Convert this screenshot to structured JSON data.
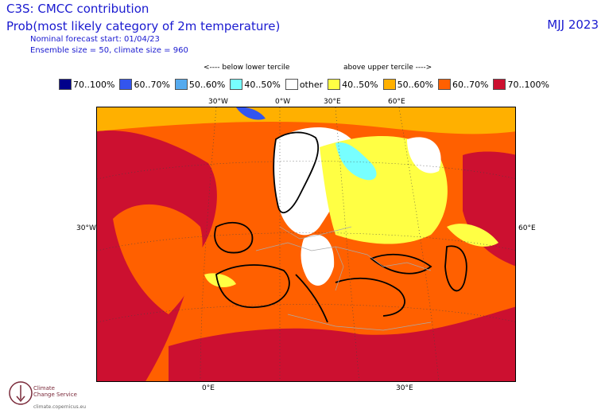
{
  "header": {
    "title": "C3S: CMCC contribution",
    "subtitle": "Prob(most likely category of 2m temperature)",
    "forecast_start": "Nominal forecast start: 01/04/23",
    "ensemble": "Ensemble size = 50, climate size = 960",
    "season": "MJJ 2023"
  },
  "legend": {
    "below_label": "<---- below lower tercile",
    "above_label": "above upper tercile ---->",
    "items": [
      {
        "label": "70..100%",
        "color": "#00008b"
      },
      {
        "label": "60..70%",
        "color": "#3355ee"
      },
      {
        "label": "50..60%",
        "color": "#55aaee"
      },
      {
        "label": "40..50%",
        "color": "#77ffff"
      },
      {
        "label": "other",
        "color": "#ffffff"
      },
      {
        "label": "40..50%",
        "color": "#ffff44"
      },
      {
        "label": "50..60%",
        "color": "#ffb000"
      },
      {
        "label": "60..70%",
        "color": "#ff6000"
      },
      {
        "label": "70..100%",
        "color": "#cc1030"
      }
    ]
  },
  "axes": {
    "top": [
      "30°W",
      "0°W",
      "30°E",
      "60°E"
    ],
    "left": "30°W",
    "right": "60°E",
    "bottom": [
      "0°E",
      "30°E"
    ]
  },
  "logo": {
    "name_line1": "Climate",
    "name_line2": "Change Service",
    "url": "climate.copernicus.eu"
  }
}
